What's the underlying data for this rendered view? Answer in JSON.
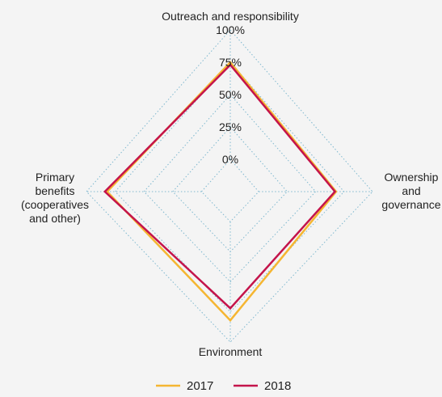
{
  "chart_data": {
    "type": "radar",
    "axes": [
      "Outreach and responsibility",
      "Ownership and governance",
      "Environment",
      "Primary benefits (cooperatives and other)"
    ],
    "axis_label_lines": [
      [
        "Outreach and responsibility"
      ],
      [
        "Ownership",
        "and",
        "governance"
      ],
      [
        "Environment"
      ],
      [
        "Primary",
        "benefits",
        "(cooperatives",
        "and other)"
      ]
    ],
    "tick_labels": [
      "0%",
      "25%",
      "50%",
      "75%",
      "100%"
    ],
    "range": [
      0,
      100
    ],
    "grid": true,
    "legend_position": "bottom",
    "series": [
      {
        "name": "2017",
        "color": "#f5b632",
        "values": [
          75,
          68,
          82,
          82
        ]
      },
      {
        "name": "2018",
        "color": "#c4144b",
        "values": [
          73,
          67,
          72,
          84
        ]
      }
    ]
  },
  "colors": {
    "background": "#f4f4f4",
    "grid": "#7fb8cf",
    "text": "#222222"
  }
}
